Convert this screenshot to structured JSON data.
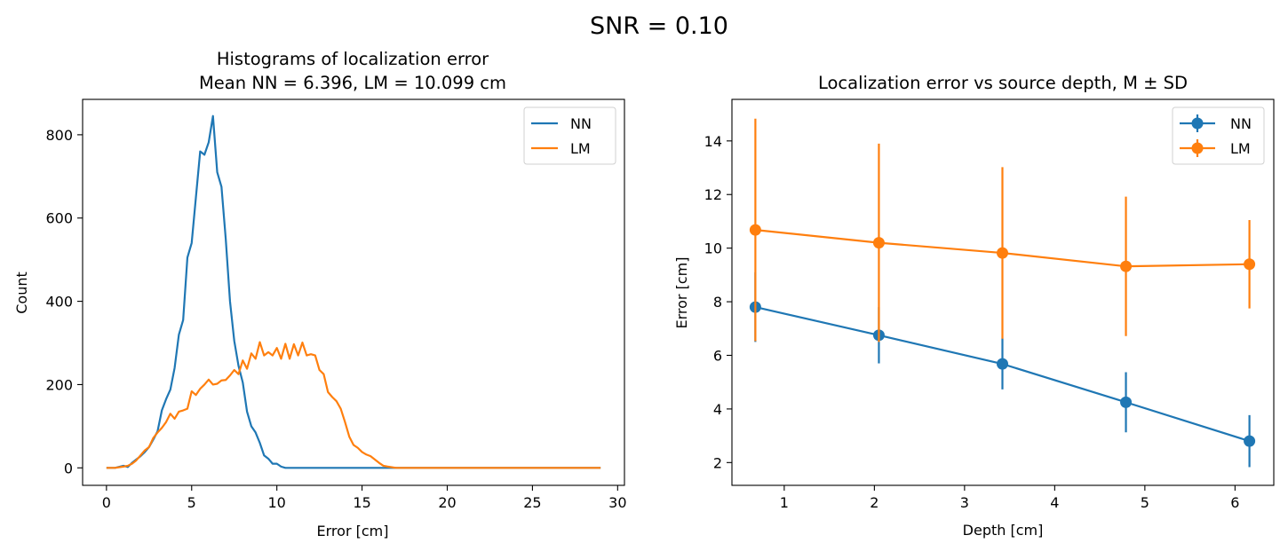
{
  "suptitle": "SNR = 0.10",
  "colors": {
    "nn": "#1f77b4",
    "lm": "#ff7f0e"
  },
  "chart_data": [
    {
      "type": "line",
      "title": "Histograms of localization error",
      "subtitle": "Mean NN = 6.396, LM = 10.099 cm",
      "xlabel": "Error [cm]",
      "ylabel": "Count",
      "xlim": [
        -1.4,
        30.4
      ],
      "ylim": [
        -42,
        885
      ],
      "xticks": [
        0,
        5,
        10,
        15,
        20,
        25,
        30
      ],
      "yticks": [
        0,
        200,
        400,
        600,
        800
      ],
      "grid": false,
      "legend": "top-right",
      "series": [
        {
          "name": "NN",
          "points": [
            [
              0,
              0
            ],
            [
              0.5,
              0
            ],
            [
              1,
              5
            ],
            [
              1.25,
              2
            ],
            [
              1.5,
              12
            ],
            [
              1.75,
              20
            ],
            [
              2,
              28
            ],
            [
              2.25,
              38
            ],
            [
              2.5,
              50
            ],
            [
              2.75,
              68
            ],
            [
              3,
              88
            ],
            [
              3.25,
              138
            ],
            [
              3.5,
              165
            ],
            [
              3.75,
              188
            ],
            [
              4,
              240
            ],
            [
              4.25,
              320
            ],
            [
              4.5,
              355
            ],
            [
              4.75,
              505
            ],
            [
              5,
              540
            ],
            [
              5.25,
              650
            ],
            [
              5.5,
              760
            ],
            [
              5.75,
              752
            ],
            [
              6,
              782
            ],
            [
              6.25,
              845
            ],
            [
              6.5,
              710
            ],
            [
              6.75,
              675
            ],
            [
              7,
              550
            ],
            [
              7.25,
              400
            ],
            [
              7.5,
              305
            ],
            [
              7.75,
              245
            ],
            [
              8,
              205
            ],
            [
              8.25,
              135
            ],
            [
              8.5,
              100
            ],
            [
              8.75,
              85
            ],
            [
              9,
              60
            ],
            [
              9.25,
              30
            ],
            [
              9.5,
              22
            ],
            [
              9.75,
              10
            ],
            [
              10,
              10
            ],
            [
              10.25,
              3
            ],
            [
              10.5,
              0
            ],
            [
              12,
              0
            ],
            [
              15,
              0
            ],
            [
              20,
              0
            ],
            [
              25,
              0
            ],
            [
              29,
              0
            ]
          ]
        },
        {
          "name": "LM",
          "points": [
            [
              0,
              0
            ],
            [
              0.5,
              0
            ],
            [
              1,
              3
            ],
            [
              1.25,
              5
            ],
            [
              1.5,
              10
            ],
            [
              1.75,
              18
            ],
            [
              2,
              30
            ],
            [
              2.25,
              42
            ],
            [
              2.5,
              50
            ],
            [
              2.75,
              72
            ],
            [
              3,
              85
            ],
            [
              3.25,
              96
            ],
            [
              3.5,
              110
            ],
            [
              3.75,
              130
            ],
            [
              4,
              118
            ],
            [
              4.25,
              135
            ],
            [
              4.5,
              138
            ],
            [
              4.75,
              142
            ],
            [
              5,
              184
            ],
            [
              5.25,
              175
            ],
            [
              5.5,
              190
            ],
            [
              5.75,
              200
            ],
            [
              6,
              212
            ],
            [
              6.25,
              200
            ],
            [
              6.5,
              202
            ],
            [
              6.75,
              210
            ],
            [
              7,
              211
            ],
            [
              7.25,
              222
            ],
            [
              7.5,
              235
            ],
            [
              7.75,
              225
            ],
            [
              8,
              258
            ],
            [
              8.25,
              238
            ],
            [
              8.5,
              275
            ],
            [
              8.75,
              262
            ],
            [
              9,
              302
            ],
            [
              9.25,
              270
            ],
            [
              9.5,
              278
            ],
            [
              9.75,
              270
            ],
            [
              10,
              288
            ],
            [
              10.25,
              262
            ],
            [
              10.5,
              298
            ],
            [
              10.75,
              262
            ],
            [
              11,
              297
            ],
            [
              11.25,
              270
            ],
            [
              11.5,
              301
            ],
            [
              11.75,
              270
            ],
            [
              12,
              273
            ],
            [
              12.25,
              270
            ],
            [
              12.5,
              235
            ],
            [
              12.75,
              225
            ],
            [
              13,
              182
            ],
            [
              13.25,
              170
            ],
            [
              13.5,
              160
            ],
            [
              13.75,
              142
            ],
            [
              14,
              110
            ],
            [
              14.25,
              75
            ],
            [
              14.5,
              55
            ],
            [
              14.75,
              48
            ],
            [
              15,
              38
            ],
            [
              15.25,
              32
            ],
            [
              15.5,
              28
            ],
            [
              15.75,
              20
            ],
            [
              16,
              12
            ],
            [
              16.25,
              5
            ],
            [
              16.5,
              3
            ],
            [
              17,
              0
            ],
            [
              20,
              0
            ],
            [
              25,
              0
            ],
            [
              29,
              0
            ]
          ]
        }
      ]
    },
    {
      "type": "errorbar",
      "title": "Localization error vs source depth, M ± SD",
      "xlabel": "Depth [cm]",
      "ylabel": "Error [cm]",
      "xlim": [
        0.42,
        6.43
      ],
      "ylim": [
        1.15,
        15.55
      ],
      "xticks": [
        1,
        2,
        3,
        4,
        5,
        6
      ],
      "yticks": [
        2,
        4,
        6,
        8,
        10,
        12,
        14
      ],
      "grid": false,
      "legend": "top-right",
      "series": [
        {
          "name": "NN",
          "x": [
            0.68,
            2.05,
            3.42,
            4.79,
            6.16
          ],
          "y": [
            7.8,
            6.75,
            5.68,
            4.25,
            2.8
          ],
          "sd": [
            1.3,
            1.05,
            0.95,
            1.12,
            0.97
          ]
        },
        {
          "name": "LM",
          "x": [
            0.68,
            2.05,
            3.42,
            4.79,
            6.16
          ],
          "y": [
            10.68,
            10.2,
            9.82,
            9.32,
            9.4
          ],
          "sd": [
            4.15,
            3.7,
            3.2,
            2.6,
            1.65
          ]
        }
      ]
    }
  ]
}
